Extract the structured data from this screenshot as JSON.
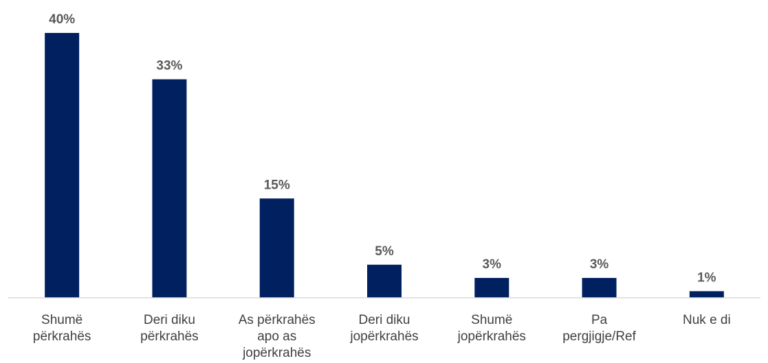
{
  "chart_data": {
    "type": "bar",
    "categories": [
      [
        "Shumë",
        "përkrahës"
      ],
      [
        "Deri diku",
        "përkrahës"
      ],
      [
        "As përkrahës",
        "apo as",
        "jopërkrahës"
      ],
      [
        "Deri diku",
        "jopërkrahës"
      ],
      [
        "Shumë",
        "jopërkrahës"
      ],
      [
        "Pa",
        "pergjigje/Ref"
      ],
      [
        "Nuk e di"
      ]
    ],
    "values": [
      40,
      33,
      15,
      5,
      3,
      3,
      1
    ],
    "value_labels": [
      "40%",
      "33%",
      "15%",
      "5%",
      "3%",
      "3%",
      "1%"
    ],
    "unit": "%",
    "ylim": [
      0,
      40
    ],
    "grid": false,
    "legend": "none",
    "bar_color": "#002060",
    "axis_color": "#d9d9d9"
  }
}
